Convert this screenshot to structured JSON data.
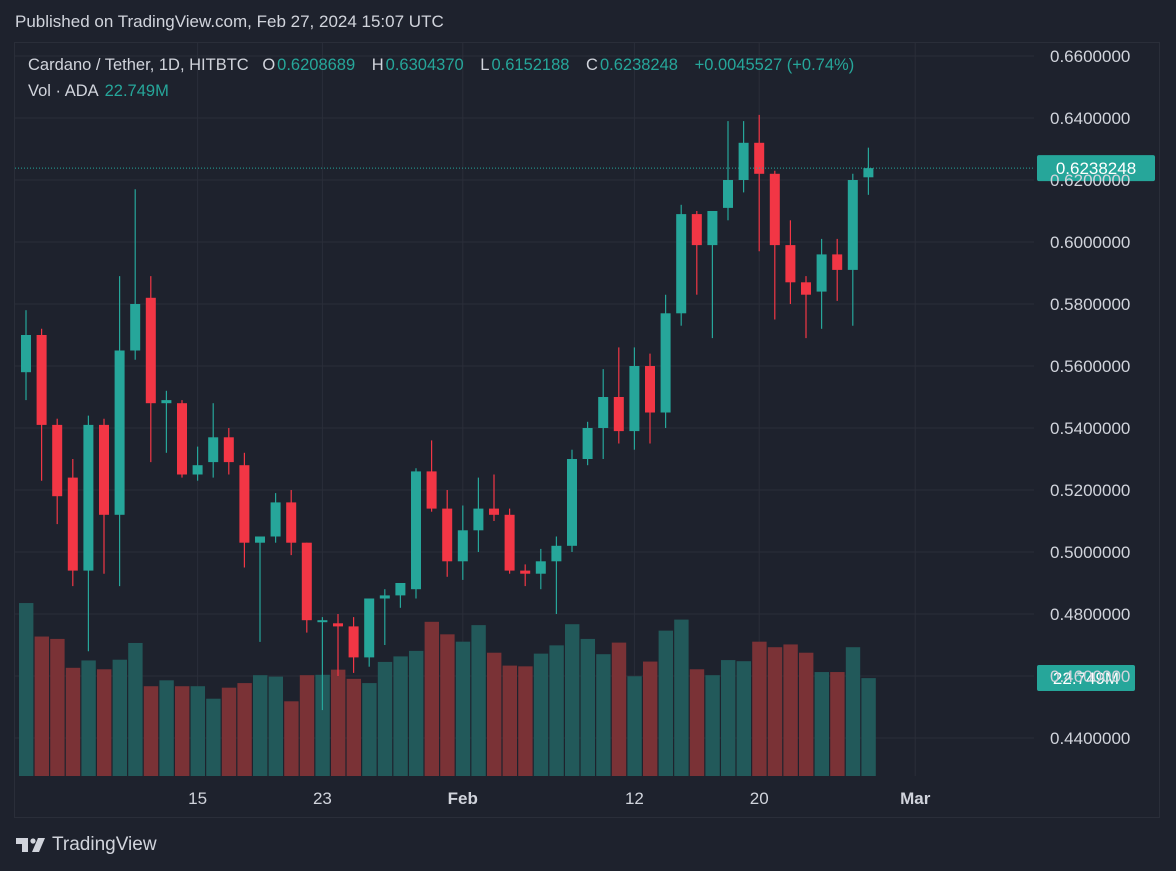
{
  "header": {
    "published": "Published on TradingView.com, Feb 27, 2024 15:07 UTC"
  },
  "legend": {
    "symbol": "Cardano / Tether, 1D, HITBTC",
    "open_label": "O",
    "open": "0.6208689",
    "high_label": "H",
    "high": "0.6304370",
    "low_label": "L",
    "low": "0.6152188",
    "close_label": "C",
    "close": "0.6238248",
    "change": "+0.0045527 (+0.74%)",
    "vol_label": "Vol · ADA",
    "vol": "22.749M"
  },
  "brand": {
    "name": "TradingView",
    "icon": "tradingview-logo-icon"
  },
  "colors": {
    "background": "#1e222d",
    "up": "#26a69a",
    "down": "#f23645",
    "volume_up": "#22595a",
    "volume_down": "#7a3236",
    "grid": "#2a2e39",
    "text": "#d1d4dc"
  },
  "chart_data": {
    "type": "candlestick",
    "title": "Cardano / Tether, 1D, HITBTC",
    "y_axis": {
      "min": 0.43,
      "max": 0.67,
      "ticks": [
        "0.6600000",
        "0.6400000",
        "0.6200000",
        "0.6000000",
        "0.5800000",
        "0.5600000",
        "0.5400000",
        "0.5200000",
        "0.5000000",
        "0.4800000",
        "0.4600000",
        "0.4400000"
      ],
      "tick_values": [
        0.66,
        0.64,
        0.62,
        0.6,
        0.58,
        0.56,
        0.54,
        0.52,
        0.5,
        0.48,
        0.46,
        0.44
      ],
      "position": "right"
    },
    "x_axis": {
      "labels": [
        {
          "text": "15",
          "index": 11,
          "bold": false
        },
        {
          "text": "23",
          "index": 19,
          "bold": false
        },
        {
          "text": "Feb",
          "index": 28,
          "bold": true
        },
        {
          "text": "12",
          "index": 39,
          "bold": false
        },
        {
          "text": "20",
          "index": 47,
          "bold": false
        },
        {
          "text": "Mar",
          "index": 57,
          "bold": true
        }
      ]
    },
    "current_price": {
      "value": 0.6238248,
      "label": "0.6238248"
    },
    "current_volume": {
      "label": "22.749M"
    },
    "candles": [
      {
        "o": 0.558,
        "h": 0.578,
        "l": 0.549,
        "c": 0.57,
        "v": 0.94
      },
      {
        "o": 0.57,
        "h": 0.572,
        "l": 0.523,
        "c": 0.541,
        "v": 0.758
      },
      {
        "o": 0.541,
        "h": 0.543,
        "l": 0.509,
        "c": 0.518,
        "v": 0.745
      },
      {
        "o": 0.524,
        "h": 0.53,
        "l": 0.489,
        "c": 0.494,
        "v": 0.588
      },
      {
        "o": 0.494,
        "h": 0.544,
        "l": 0.468,
        "c": 0.541,
        "v": 0.628
      },
      {
        "o": 0.541,
        "h": 0.543,
        "l": 0.493,
        "c": 0.512,
        "v": 0.58
      },
      {
        "o": 0.512,
        "h": 0.589,
        "l": 0.489,
        "c": 0.565,
        "v": 0.632
      },
      {
        "o": 0.565,
        "h": 0.617,
        "l": 0.562,
        "c": 0.58,
        "v": 0.723
      },
      {
        "o": 0.582,
        "h": 0.589,
        "l": 0.529,
        "c": 0.548,
        "v": 0.488
      },
      {
        "o": 0.548,
        "h": 0.552,
        "l": 0.532,
        "c": 0.549,
        "v": 0.52
      },
      {
        "o": 0.548,
        "h": 0.549,
        "l": 0.524,
        "c": 0.525,
        "v": 0.488
      },
      {
        "o": 0.525,
        "h": 0.534,
        "l": 0.523,
        "c": 0.528,
        "v": 0.488
      },
      {
        "o": 0.529,
        "h": 0.548,
        "l": 0.524,
        "c": 0.537,
        "v": 0.42
      },
      {
        "o": 0.537,
        "h": 0.54,
        "l": 0.525,
        "c": 0.529,
        "v": 0.48
      },
      {
        "o": 0.528,
        "h": 0.532,
        "l": 0.495,
        "c": 0.503,
        "v": 0.505
      },
      {
        "o": 0.503,
        "h": 0.505,
        "l": 0.471,
        "c": 0.505,
        "v": 0.548
      },
      {
        "o": 0.505,
        "h": 0.519,
        "l": 0.503,
        "c": 0.516,
        "v": 0.54
      },
      {
        "o": 0.516,
        "h": 0.52,
        "l": 0.499,
        "c": 0.503,
        "v": 0.406
      },
      {
        "o": 0.503,
        "h": 0.503,
        "l": 0.474,
        "c": 0.478,
        "v": 0.548
      },
      {
        "o": 0.478,
        "h": 0.479,
        "l": 0.449,
        "c": 0.478,
        "v": 0.55
      },
      {
        "o": 0.477,
        "h": 0.48,
        "l": 0.46,
        "c": 0.476,
        "v": 0.578
      },
      {
        "o": 0.476,
        "h": 0.479,
        "l": 0.461,
        "c": 0.466,
        "v": 0.528
      },
      {
        "o": 0.466,
        "h": 0.485,
        "l": 0.463,
        "c": 0.485,
        "v": 0.505
      },
      {
        "o": 0.485,
        "h": 0.488,
        "l": 0.47,
        "c": 0.486,
        "v": 0.62
      },
      {
        "o": 0.486,
        "h": 0.49,
        "l": 0.482,
        "c": 0.49,
        "v": 0.65
      },
      {
        "o": 0.488,
        "h": 0.527,
        "l": 0.485,
        "c": 0.526,
        "v": 0.68
      },
      {
        "o": 0.526,
        "h": 0.536,
        "l": 0.513,
        "c": 0.514,
        "v": 0.838
      },
      {
        "o": 0.514,
        "h": 0.52,
        "l": 0.492,
        "c": 0.497,
        "v": 0.77
      },
      {
        "o": 0.497,
        "h": 0.515,
        "l": 0.491,
        "c": 0.507,
        "v": 0.73
      },
      {
        "o": 0.507,
        "h": 0.524,
        "l": 0.5,
        "c": 0.514,
        "v": 0.82
      },
      {
        "o": 0.514,
        "h": 0.525,
        "l": 0.51,
        "c": 0.512,
        "v": 0.67
      },
      {
        "o": 0.512,
        "h": 0.514,
        "l": 0.493,
        "c": 0.494,
        "v": 0.6
      },
      {
        "o": 0.494,
        "h": 0.496,
        "l": 0.489,
        "c": 0.493,
        "v": 0.596
      },
      {
        "o": 0.493,
        "h": 0.501,
        "l": 0.488,
        "c": 0.497,
        "v": 0.665
      },
      {
        "o": 0.497,
        "h": 0.505,
        "l": 0.48,
        "c": 0.502,
        "v": 0.71
      },
      {
        "o": 0.502,
        "h": 0.533,
        "l": 0.5,
        "c": 0.53,
        "v": 0.825
      },
      {
        "o": 0.53,
        "h": 0.542,
        "l": 0.528,
        "c": 0.54,
        "v": 0.745
      },
      {
        "o": 0.54,
        "h": 0.559,
        "l": 0.53,
        "c": 0.55,
        "v": 0.662
      },
      {
        "o": 0.55,
        "h": 0.566,
        "l": 0.535,
        "c": 0.539,
        "v": 0.725
      },
      {
        "o": 0.539,
        "h": 0.566,
        "l": 0.533,
        "c": 0.56,
        "v": 0.542
      },
      {
        "o": 0.56,
        "h": 0.564,
        "l": 0.535,
        "c": 0.545,
        "v": 0.622
      },
      {
        "o": 0.545,
        "h": 0.583,
        "l": 0.54,
        "c": 0.577,
        "v": 0.79
      },
      {
        "o": 0.577,
        "h": 0.612,
        "l": 0.573,
        "c": 0.609,
        "v": 0.85
      },
      {
        "o": 0.609,
        "h": 0.61,
        "l": 0.583,
        "c": 0.599,
        "v": 0.58
      },
      {
        "o": 0.599,
        "h": 0.61,
        "l": 0.569,
        "c": 0.61,
        "v": 0.548
      },
      {
        "o": 0.611,
        "h": 0.639,
        "l": 0.607,
        "c": 0.62,
        "v": 0.63
      },
      {
        "o": 0.62,
        "h": 0.639,
        "l": 0.616,
        "c": 0.632,
        "v": 0.624
      },
      {
        "o": 0.632,
        "h": 0.641,
        "l": 0.597,
        "c": 0.622,
        "v": 0.73
      },
      {
        "o": 0.622,
        "h": 0.623,
        "l": 0.575,
        "c": 0.599,
        "v": 0.7
      },
      {
        "o": 0.599,
        "h": 0.607,
        "l": 0.58,
        "c": 0.587,
        "v": 0.715
      },
      {
        "o": 0.587,
        "h": 0.589,
        "l": 0.569,
        "c": 0.583,
        "v": 0.67
      },
      {
        "o": 0.584,
        "h": 0.601,
        "l": 0.572,
        "c": 0.596,
        "v": 0.565
      },
      {
        "o": 0.596,
        "h": 0.601,
        "l": 0.581,
        "c": 0.591,
        "v": 0.565
      },
      {
        "o": 0.591,
        "h": 0.622,
        "l": 0.573,
        "c": 0.62,
        "v": 0.7
      },
      {
        "o": 0.6208689,
        "h": 0.630437,
        "l": 0.6152188,
        "c": 0.6238248,
        "v": 0.532
      }
    ]
  }
}
